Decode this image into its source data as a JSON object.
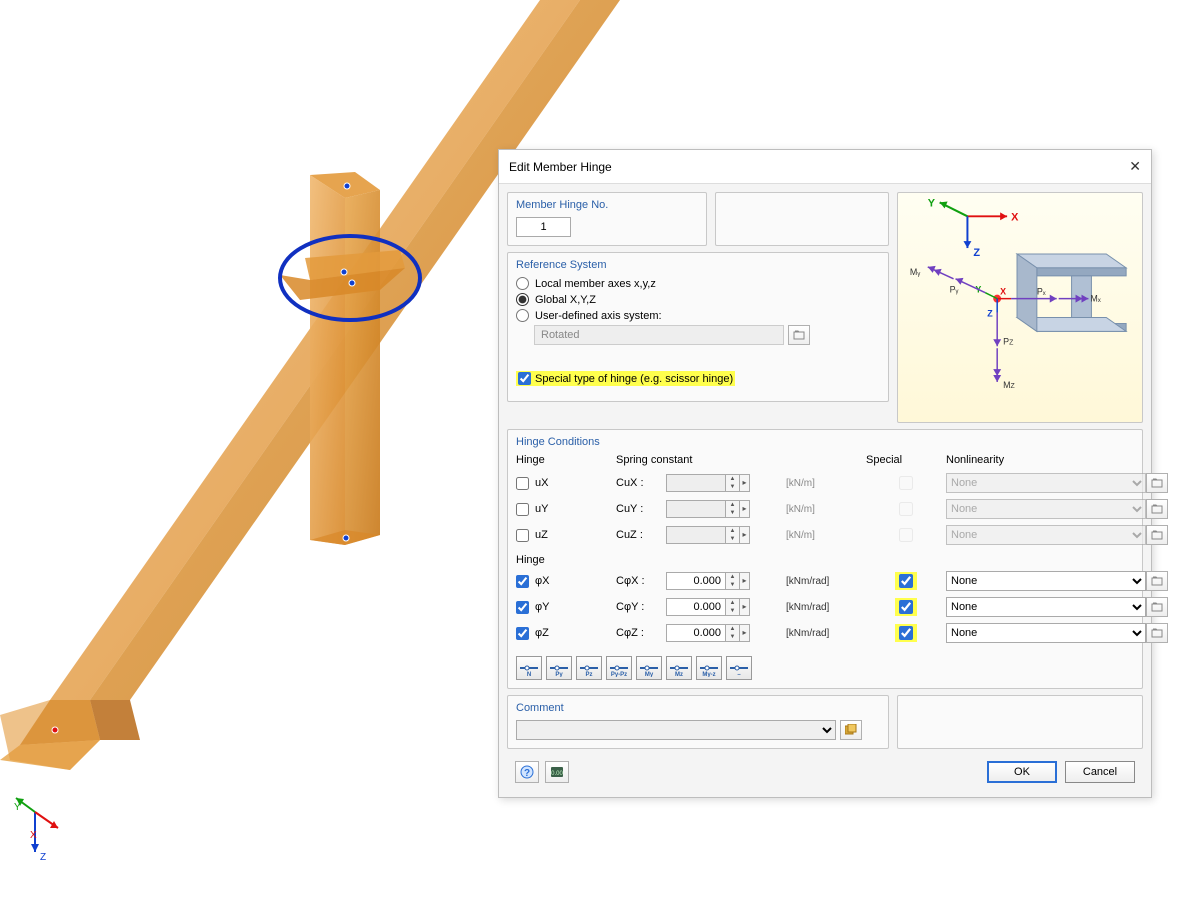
{
  "dialog": {
    "title": "Edit Member Hinge",
    "hinge_no_label": "Member Hinge No.",
    "hinge_no": "1",
    "ref_sys_title": "Reference System",
    "ref_local": "Local member axes x,y,z",
    "ref_global": "Global X,Y,Z",
    "ref_user": "User-defined axis system:",
    "ref_user_option": "Rotated",
    "special_hinge": "Special type of hinge (e.g. scissor hinge)",
    "hinge_cond_title": "Hinge Conditions",
    "col_hinge": "Hinge",
    "col_spring": "Spring constant",
    "col_special": "Special",
    "col_nonlin": "Nonlinearity",
    "sub_hinge": "Hinge",
    "rows_u": [
      {
        "label": "uX",
        "c_label": "CuX :",
        "unit": "[kN/m]",
        "checked": false,
        "special": false,
        "nonlin": "None"
      },
      {
        "label": "uY",
        "c_label": "CuY :",
        "unit": "[kN/m]",
        "checked": false,
        "special": false,
        "nonlin": "None"
      },
      {
        "label": "uZ",
        "c_label": "CuZ :",
        "unit": "[kN/m]",
        "checked": false,
        "special": false,
        "nonlin": "None"
      }
    ],
    "rows_phi": [
      {
        "label": "φX",
        "c_label": "CφX :",
        "val": "0.000",
        "unit": "[kNm/rad]",
        "checked": true,
        "special": true,
        "nonlin": "None"
      },
      {
        "label": "φY",
        "c_label": "CφY :",
        "val": "0.000",
        "unit": "[kNm/rad]",
        "checked": true,
        "special": true,
        "nonlin": "None"
      },
      {
        "label": "φZ",
        "c_label": "CφZ :",
        "val": "0.000",
        "unit": "[kNm/rad]",
        "checked": true,
        "special": true,
        "nonlin": "None"
      }
    ],
    "presets": [
      "N",
      "Py",
      "Pz",
      "Py-Pz",
      "My",
      "Mz",
      "My-z",
      "–"
    ],
    "comment_title": "Comment",
    "help_icon": "?",
    "ok": "OK",
    "cancel": "Cancel"
  },
  "colors": {
    "member": "#e39a3c",
    "member_dark": "#c97a1e",
    "highlight_ring": "#1030c0",
    "axis_x": "#e01010",
    "axis_y": "#10a010",
    "axis_z": "#1040d0",
    "axis_purple": "#7040c0",
    "steel": "#a8b8cc",
    "steel_dark": "#7890ac"
  }
}
